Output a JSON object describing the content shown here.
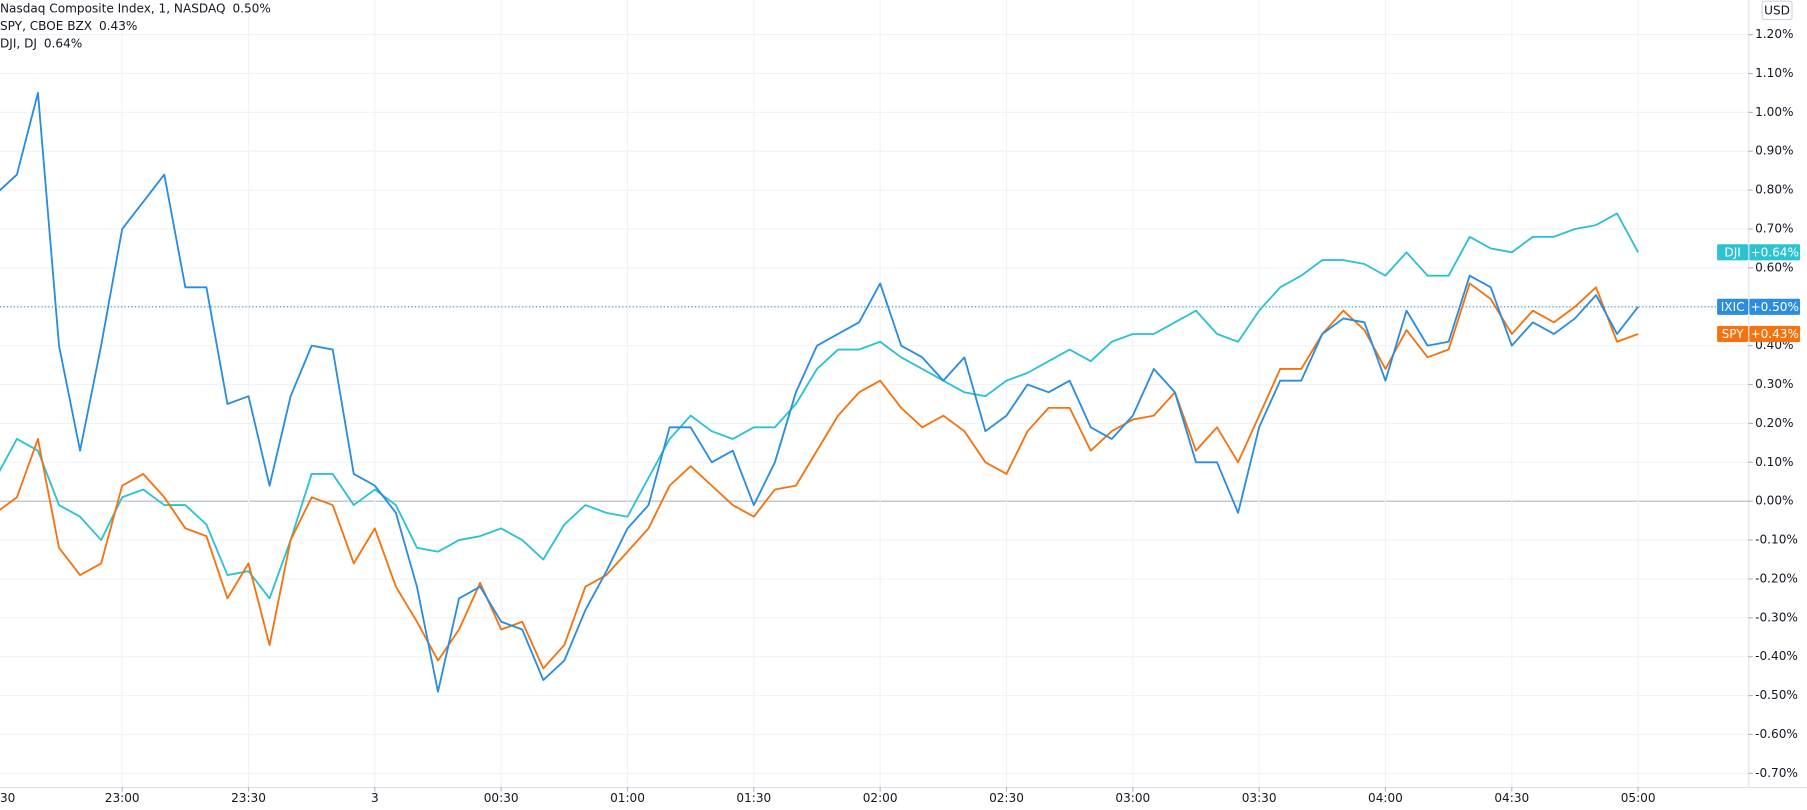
{
  "chart_data": {
    "type": "line",
    "currency": "USD",
    "categories": [
      "30",
      null,
      null,
      null,
      null,
      null,
      "23:00",
      null,
      null,
      null,
      null,
      null,
      "23:30",
      null,
      null,
      null,
      null,
      null,
      "3",
      null,
      null,
      null,
      null,
      null,
      "00:30",
      null,
      null,
      null,
      null,
      null,
      "01:00",
      null,
      null,
      null,
      null,
      null,
      "01:30",
      null,
      null,
      null,
      null,
      null,
      "02:00",
      null,
      null,
      null,
      null,
      null,
      "02:30",
      null,
      null,
      null,
      null,
      null,
      "03:00",
      null,
      null,
      null,
      null,
      null,
      "03:30",
      null,
      null,
      null,
      null,
      null,
      "04:00",
      null,
      null,
      null,
      null,
      null,
      "04:30",
      null,
      null,
      null,
      null,
      null,
      "05:00"
    ],
    "ylim": [
      -0.735,
      1.289
    ],
    "yticks": [
      {
        "value": -0.7,
        "label": "-0.70%"
      },
      {
        "value": -0.6,
        "label": "-0.60%"
      },
      {
        "value": -0.5,
        "label": "-0.50%"
      },
      {
        "value": -0.4,
        "label": "-0.40%"
      },
      {
        "value": -0.3,
        "label": "-0.30%"
      },
      {
        "value": -0.2,
        "label": "-0.20%"
      },
      {
        "value": -0.1,
        "label": "-0.10%"
      },
      {
        "value": 0,
        "label": "0.00%"
      },
      {
        "value": 0.1,
        "label": "0.10%"
      },
      {
        "value": 0.2,
        "label": "0.20%"
      },
      {
        "value": 0.3,
        "label": "0.30%"
      },
      {
        "value": 0.4,
        "label": "0.40%"
      },
      {
        "value": 0.5,
        "label": "0.50%"
      },
      {
        "value": 0.6,
        "label": "0.60%"
      },
      {
        "value": 0.7,
        "label": "0.70%"
      },
      {
        "value": 0.8,
        "label": "0.80%"
      },
      {
        "value": 0.9,
        "label": "0.90%"
      },
      {
        "value": 1.0,
        "label": "1.00%"
      },
      {
        "value": 1.1,
        "label": "1.10%"
      },
      {
        "value": 1.2,
        "label": "1.20%"
      }
    ],
    "grid": true,
    "series": [
      {
        "name": "Nasdaq Composite Index, 1, NASDAQ",
        "symbol": "IXIC",
        "color": "#2a8de0",
        "legend_label": "0.50%",
        "badge_label": "+0.50%",
        "price_line": true,
        "values": [
          0.79,
          0.84,
          1.05,
          0.4,
          0.13,
          0.4,
          0.7,
          0.77,
          0.84,
          0.55,
          0.55,
          0.25,
          0.27,
          0.04,
          0.27,
          0.4,
          0.39,
          0.07,
          0.04,
          -0.03,
          -0.22,
          -0.49,
          -0.25,
          -0.22,
          -0.31,
          -0.33,
          -0.46,
          -0.41,
          -0.28,
          -0.18,
          -0.07,
          -0.01,
          0.19,
          0.19,
          0.1,
          0.13,
          -0.01,
          0.1,
          0.28,
          0.4,
          0.43,
          0.46,
          0.56,
          0.4,
          0.37,
          0.31,
          0.37,
          0.18,
          0.22,
          0.3,
          0.28,
          0.31,
          0.19,
          0.16,
          0.22,
          0.34,
          0.28,
          0.1,
          0.1,
          -0.03,
          0.19,
          0.31,
          0.31,
          0.43,
          0.47,
          0.46,
          0.31,
          0.49,
          0.4,
          0.41,
          0.58,
          0.55,
          0.4,
          0.46,
          0.43,
          0.47,
          0.53,
          0.43,
          0.5
        ]
      },
      {
        "name": "SPY, CBOE BZX",
        "symbol": "SPY",
        "color": "#f5730f",
        "legend_label": "0.43%",
        "badge_label": "+0.43%",
        "price_line": false,
        "values": [
          -0.03,
          0.01,
          0.16,
          -0.12,
          -0.19,
          -0.16,
          0.04,
          0.07,
          0.01,
          -0.07,
          -0.09,
          -0.25,
          -0.16,
          -0.37,
          -0.1,
          0.01,
          -0.01,
          -0.16,
          -0.07,
          -0.22,
          -0.31,
          -0.41,
          -0.33,
          -0.21,
          -0.33,
          -0.31,
          -0.43,
          -0.37,
          -0.22,
          -0.19,
          -0.13,
          -0.07,
          0.04,
          0.09,
          0.04,
          -0.01,
          -0.04,
          0.03,
          0.04,
          0.13,
          0.22,
          0.28,
          0.31,
          0.24,
          0.19,
          0.22,
          0.18,
          0.1,
          0.07,
          0.18,
          0.24,
          0.24,
          0.13,
          0.18,
          0.21,
          0.22,
          0.28,
          0.13,
          0.19,
          0.1,
          0.22,
          0.34,
          0.34,
          0.43,
          0.49,
          0.44,
          0.34,
          0.44,
          0.37,
          0.39,
          0.56,
          0.52,
          0.43,
          0.49,
          0.46,
          0.5,
          0.55,
          0.41,
          0.43
        ]
      },
      {
        "name": "DJI, DJ",
        "symbol": "DJI",
        "color": "#2bc2d1",
        "legend_label": "0.64%",
        "badge_label": "+0.64%",
        "price_line": false,
        "values": [
          0.06,
          0.16,
          0.13,
          -0.01,
          -0.04,
          -0.1,
          0.01,
          0.03,
          -0.01,
          -0.01,
          -0.06,
          -0.19,
          -0.18,
          -0.25,
          -0.1,
          0.07,
          0.07,
          -0.01,
          0.03,
          -0.01,
          -0.12,
          -0.13,
          -0.1,
          -0.09,
          -0.07,
          -0.1,
          -0.15,
          -0.06,
          -0.01,
          -0.03,
          -0.04,
          0.06,
          0.16,
          0.22,
          0.18,
          0.16,
          0.19,
          0.19,
          0.25,
          0.34,
          0.39,
          0.39,
          0.41,
          0.37,
          0.34,
          0.31,
          0.28,
          0.27,
          0.31,
          0.33,
          0.36,
          0.39,
          0.36,
          0.41,
          0.43,
          0.43,
          0.46,
          0.49,
          0.43,
          0.41,
          0.49,
          0.55,
          0.58,
          0.62,
          0.62,
          0.61,
          0.58,
          0.64,
          0.58,
          0.58,
          0.68,
          0.65,
          0.64,
          0.68,
          0.68,
          0.7,
          0.71,
          0.74,
          0.64
        ]
      }
    ]
  }
}
